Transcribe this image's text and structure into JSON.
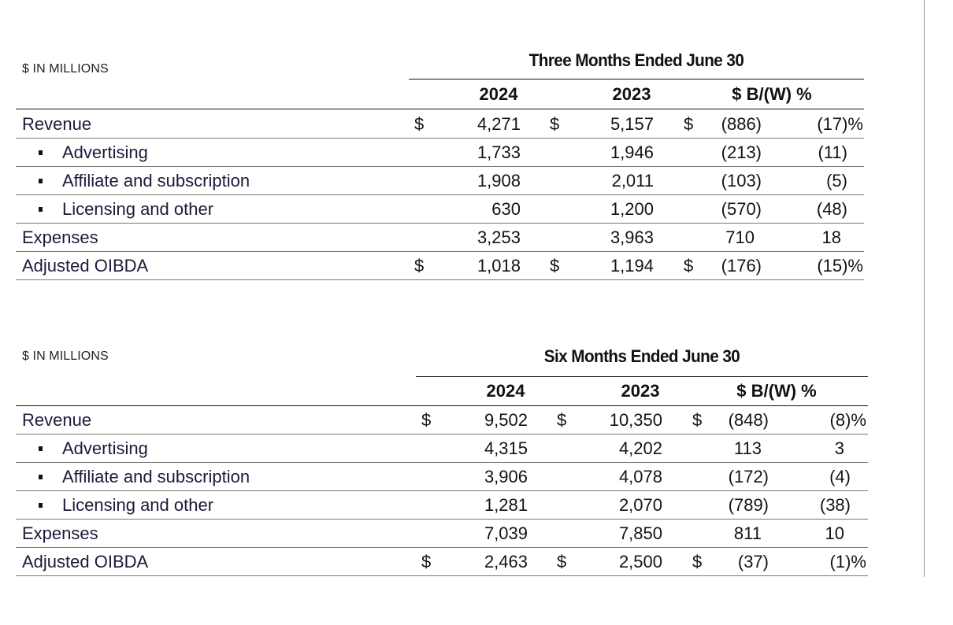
{
  "tables": [
    {
      "units": "$ IN MILLIONS",
      "period": "Three Months Ended June 30",
      "headers": {
        "y2024": "2024",
        "y2023": "2023",
        "bw": "$ B/(W) %"
      },
      "rows": [
        {
          "label": "Revenue",
          "bullet": false,
          "d1": "$",
          "v2024": "4,271",
          "d2": "$",
          "v2023": "5,157",
          "d3": "$",
          "bw": "(886)",
          "pct": "(17)%"
        },
        {
          "label": "Advertising",
          "bullet": true,
          "d1": "",
          "v2024": "1,733",
          "d2": "",
          "v2023": "1,946",
          "d3": "",
          "bw": "(213)",
          "pct": "(11)"
        },
        {
          "label": "Affiliate and subscription",
          "bullet": true,
          "d1": "",
          "v2024": "1,908",
          "d2": "",
          "v2023": "2,011",
          "d3": "",
          "bw": "(103)",
          "pct": "(5)"
        },
        {
          "label": "Licensing and other",
          "bullet": true,
          "d1": "",
          "v2024": "630",
          "d2": "",
          "v2023": "1,200",
          "d3": "",
          "bw": "(570)",
          "pct": "(48)"
        },
        {
          "label": "Expenses",
          "bullet": false,
          "d1": "",
          "v2024": "3,253",
          "d2": "",
          "v2023": "3,963",
          "d3": "",
          "bw": "710",
          "pct": "18"
        },
        {
          "label": "Adjusted OIBDA",
          "bullet": false,
          "d1": "$",
          "v2024": "1,018",
          "d2": "$",
          "v2023": "1,194",
          "d3": "$",
          "bw": "(176)",
          "pct": "(15)%"
        }
      ]
    },
    {
      "units": "$ IN MILLIONS",
      "period": "Six Months Ended June 30",
      "headers": {
        "y2024": "2024",
        "y2023": "2023",
        "bw": "$ B/(W) %"
      },
      "rows": [
        {
          "label": "Revenue",
          "bullet": false,
          "d1": "$",
          "v2024": "9,502",
          "d2": "$",
          "v2023": "10,350",
          "d3": "$",
          "bw": "(848)",
          "pct": "(8)%"
        },
        {
          "label": "Advertising",
          "bullet": true,
          "d1": "",
          "v2024": "4,315",
          "d2": "",
          "v2023": "4,202",
          "d3": "",
          "bw": "113",
          "pct": "3"
        },
        {
          "label": "Affiliate and subscription",
          "bullet": true,
          "d1": "",
          "v2024": "3,906",
          "d2": "",
          "v2023": "4,078",
          "d3": "",
          "bw": "(172)",
          "pct": "(4)"
        },
        {
          "label": "Licensing and other",
          "bullet": true,
          "d1": "",
          "v2024": "1,281",
          "d2": "",
          "v2023": "2,070",
          "d3": "",
          "bw": "(789)",
          "pct": "(38)"
        },
        {
          "label": "Expenses",
          "bullet": false,
          "d1": "",
          "v2024": "7,039",
          "d2": "",
          "v2023": "7,850",
          "d3": "",
          "bw": "811",
          "pct": "10"
        },
        {
          "label": "Adjusted OIBDA",
          "bullet": false,
          "d1": "$",
          "v2024": "2,463",
          "d2": "$",
          "v2023": "2,500",
          "d3": "$",
          "bw": "(37)",
          "pct": "(1)%"
        }
      ]
    }
  ]
}
